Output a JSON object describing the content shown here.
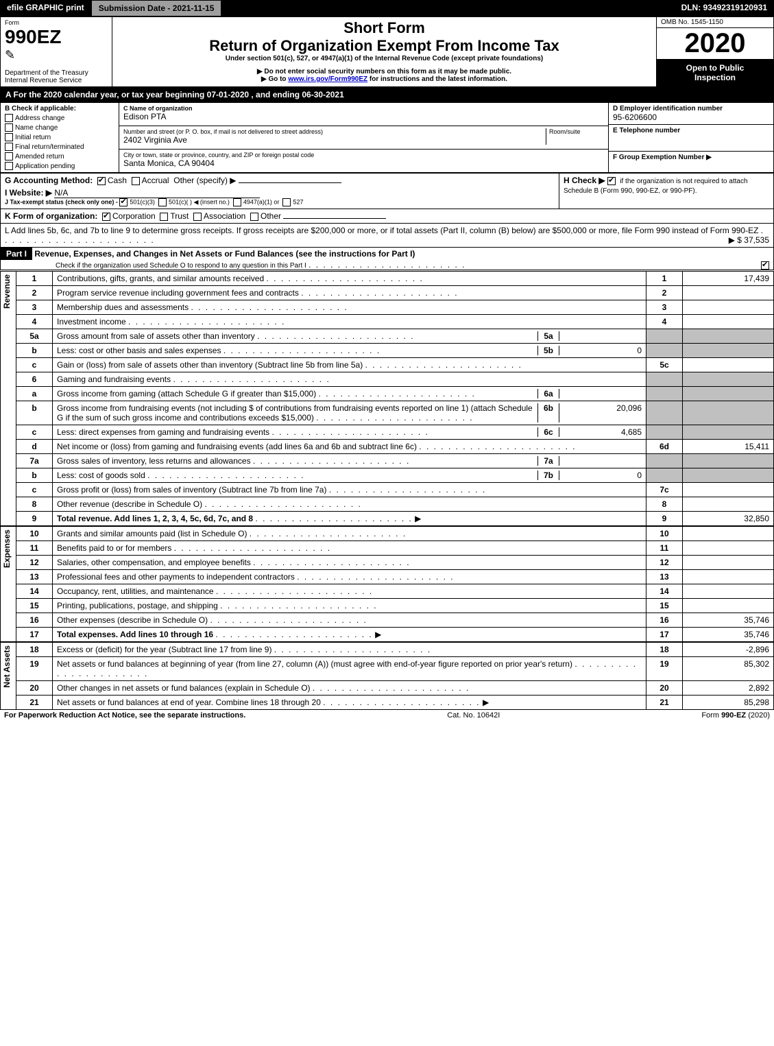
{
  "top": {
    "efile": "efile GRAPHIC print",
    "submission": "Submission Date - 2021-11-15",
    "dln": "DLN: 93492319120931"
  },
  "header": {
    "form_word": "Form",
    "form_no": "990EZ",
    "dept": "Department of the Treasury",
    "irs": "Internal Revenue Service",
    "short": "Short Form",
    "title": "Return of Organization Exempt From Income Tax",
    "subtitle": "Under section 501(c), 527, or 4947(a)(1) of the Internal Revenue Code (except private foundations)",
    "line1": "▶ Do not enter social security numbers on this form as it may be made public.",
    "line2_pre": "▶ Go to ",
    "line2_link": "www.irs.gov/Form990EZ",
    "line2_post": " for instructions and the latest information.",
    "omb": "OMB No. 1545-1150",
    "year": "2020",
    "open1": "Open to Public",
    "open2": "Inspection"
  },
  "period": "A For the 2020 calendar year, or tax year beginning 07-01-2020 , and ending 06-30-2021",
  "boxB": {
    "label": "B Check if applicable:",
    "opts": [
      "Address change",
      "Name change",
      "Initial return",
      "Final return/terminated",
      "Amended return",
      "Application pending"
    ]
  },
  "boxC": {
    "name_label": "C Name of organization",
    "name": "Edison PTA",
    "street_label": "Number and street (or P. O. box, if mail is not delivered to street address)",
    "room_label": "Room/suite",
    "street": "2402 Virginia Ave",
    "city_label": "City or town, state or province, country, and ZIP or foreign postal code",
    "city": "Santa Monica, CA  90404"
  },
  "boxD": {
    "label": "D Employer identification number",
    "val": "95-6206600"
  },
  "boxE": {
    "label": "E Telephone number"
  },
  "boxF": {
    "label": "F Group Exemption Number  ▶"
  },
  "boxG": {
    "label": "G Accounting Method:",
    "cash": "Cash",
    "accrual": "Accrual",
    "other": "Other (specify) ▶"
  },
  "boxH": {
    "label": "H  Check ▶",
    "text": "if the organization is not required to attach Schedule B (Form 990, 990-EZ, or 990-PF)."
  },
  "boxI": {
    "label": "I Website: ▶",
    "val": "N/A"
  },
  "boxJ": {
    "label": "J Tax-exempt status (check only one) -",
    "o1": "501(c)(3)",
    "o2": "501(c)(  ) ◀ (insert no.)",
    "o3": "4947(a)(1) or",
    "o4": "527"
  },
  "boxK": {
    "label": "K Form of organization:",
    "c": "Corporation",
    "t": "Trust",
    "a": "Association",
    "o": "Other"
  },
  "boxL": {
    "text": "L Add lines 5b, 6c, and 7b to line 9 to determine gross receipts. If gross receipts are $200,000 or more, or if total assets (Part II, column (B) below) are $500,000 or more, file Form 990 instead of Form 990-EZ",
    "amount": "▶ $ 37,535"
  },
  "part1": {
    "title_tag": "Part I",
    "title": "Revenue, Expenses, and Changes in Net Assets or Fund Balances (see the instructions for Part I)",
    "sub": "Check if the organization used Schedule O to respond to any question in this Part I"
  },
  "side": {
    "rev": "Revenue",
    "exp": "Expenses",
    "net": "Net Assets"
  },
  "rows": [
    {
      "n": "1",
      "d": "Contributions, gifts, grants, and similar amounts received",
      "c": "1",
      "v": "17,439"
    },
    {
      "n": "2",
      "d": "Program service revenue including government fees and contracts",
      "c": "2",
      "v": ""
    },
    {
      "n": "3",
      "d": "Membership dues and assessments",
      "c": "3",
      "v": ""
    },
    {
      "n": "4",
      "d": "Investment income",
      "c": "4",
      "v": ""
    },
    {
      "n": "5a",
      "d": "Gross amount from sale of assets other than inventory",
      "ic": "5a",
      "iv": "",
      "gray": true
    },
    {
      "n": "b",
      "d": "Less: cost or other basis and sales expenses",
      "ic": "5b",
      "iv": "0",
      "gray": true
    },
    {
      "n": "c",
      "d": "Gain or (loss) from sale of assets other than inventory (Subtract line 5b from line 5a)",
      "c": "5c",
      "v": ""
    },
    {
      "n": "6",
      "d": "Gaming and fundraising events",
      "gray": true
    },
    {
      "n": "a",
      "d": "Gross income from gaming (attach Schedule G if greater than $15,000)",
      "ic": "6a",
      "iv": "",
      "gray": true
    },
    {
      "n": "b",
      "d": "Gross income from fundraising events (not including $                    of contributions from fundraising events reported on line 1) (attach Schedule G if the sum of such gross income and contributions exceeds $15,000)",
      "ic": "6b",
      "iv": "20,096",
      "gray": true
    },
    {
      "n": "c",
      "d": "Less: direct expenses from gaming and fundraising events",
      "ic": "6c",
      "iv": "4,685",
      "gray": true
    },
    {
      "n": "d",
      "d": "Net income or (loss) from gaming and fundraising events (add lines 6a and 6b and subtract line 6c)",
      "c": "6d",
      "v": "15,411"
    },
    {
      "n": "7a",
      "d": "Gross sales of inventory, less returns and allowances",
      "ic": "7a",
      "iv": "",
      "gray": true
    },
    {
      "n": "b",
      "d": "Less: cost of goods sold",
      "ic": "7b",
      "iv": "0",
      "gray": true
    },
    {
      "n": "c",
      "d": "Gross profit or (loss) from sales of inventory (Subtract line 7b from line 7a)",
      "c": "7c",
      "v": ""
    },
    {
      "n": "8",
      "d": "Other revenue (describe in Schedule O)",
      "c": "8",
      "v": ""
    },
    {
      "n": "9",
      "d": "Total revenue. Add lines 1, 2, 3, 4, 5c, 6d, 7c, and 8",
      "c": "9",
      "v": "32,850",
      "bold": true,
      "arrow": true
    }
  ],
  "exp_rows": [
    {
      "n": "10",
      "d": "Grants and similar amounts paid (list in Schedule O)",
      "c": "10",
      "v": ""
    },
    {
      "n": "11",
      "d": "Benefits paid to or for members",
      "c": "11",
      "v": ""
    },
    {
      "n": "12",
      "d": "Salaries, other compensation, and employee benefits",
      "c": "12",
      "v": ""
    },
    {
      "n": "13",
      "d": "Professional fees and other payments to independent contractors",
      "c": "13",
      "v": ""
    },
    {
      "n": "14",
      "d": "Occupancy, rent, utilities, and maintenance",
      "c": "14",
      "v": ""
    },
    {
      "n": "15",
      "d": "Printing, publications, postage, and shipping",
      "c": "15",
      "v": ""
    },
    {
      "n": "16",
      "d": "Other expenses (describe in Schedule O)",
      "c": "16",
      "v": "35,746"
    },
    {
      "n": "17",
      "d": "Total expenses. Add lines 10 through 16",
      "c": "17",
      "v": "35,746",
      "bold": true,
      "arrow": true
    }
  ],
  "net_rows": [
    {
      "n": "18",
      "d": "Excess or (deficit) for the year (Subtract line 17 from line 9)",
      "c": "18",
      "v": "-2,896"
    },
    {
      "n": "19",
      "d": "Net assets or fund balances at beginning of year (from line 27, column (A)) (must agree with end-of-year figure reported on prior year's return)",
      "c": "19",
      "v": "85,302"
    },
    {
      "n": "20",
      "d": "Other changes in net assets or fund balances (explain in Schedule O)",
      "c": "20",
      "v": "2,892"
    },
    {
      "n": "21",
      "d": "Net assets or fund balances at end of year. Combine lines 18 through 20",
      "c": "21",
      "v": "85,298",
      "arrow": true
    }
  ],
  "footer": {
    "l": "For Paperwork Reduction Act Notice, see the separate instructions.",
    "m": "Cat. No. 10642I",
    "r": "Form 990-EZ (2020)"
  }
}
